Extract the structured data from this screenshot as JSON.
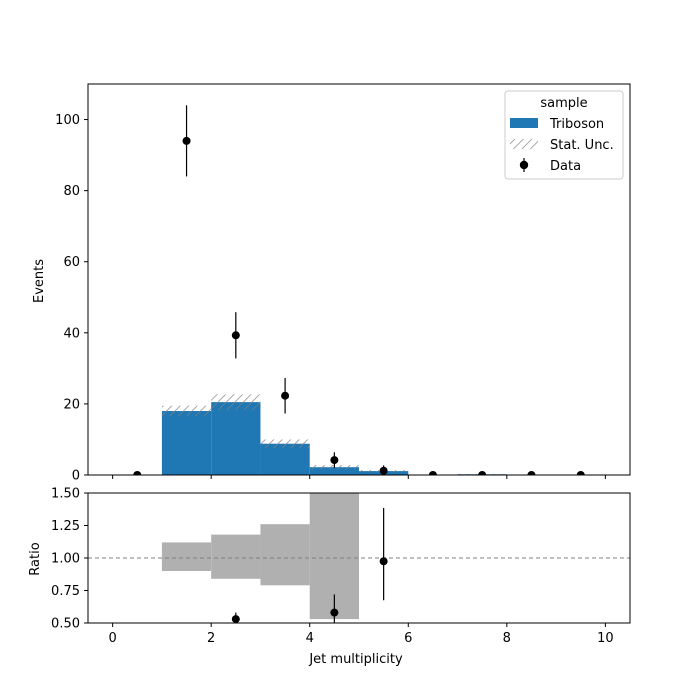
{
  "chart_data": [
    {
      "type": "bar",
      "panel": "main",
      "xlabel": "",
      "ylabel": "Events",
      "xlim": [
        -0.5,
        10.5
      ],
      "ylim": [
        0,
        110
      ],
      "xticks": [
        0,
        2,
        4,
        6,
        8,
        10
      ],
      "xtick_labels_shown": false,
      "yticks": [
        0,
        20,
        40,
        60,
        80,
        100
      ],
      "ytick_labels": [
        "0",
        "20",
        "40",
        "60",
        "80",
        "100"
      ],
      "grid": false,
      "legend": {
        "placement": "top-right",
        "title": "sample",
        "entries": [
          "Triboson",
          "Stat. Unc.",
          "Data"
        ]
      },
      "bins": [
        0,
        1,
        2,
        3,
        4,
        5,
        6,
        7,
        8,
        9,
        10
      ],
      "series": [
        {
          "name": "Triboson",
          "kind": "stacked-histogram",
          "color": "#1f77b4",
          "values": [
            0,
            18.0,
            20.5,
            8.8,
            2.2,
            1.1,
            0,
            0.2,
            0,
            0
          ],
          "stat_unc": [
            0,
            1.5,
            2.2,
            1.2,
            0.6,
            0.3,
            0,
            0.1,
            0,
            0
          ]
        },
        {
          "name": "Data",
          "kind": "points",
          "color": "#000000",
          "x": [
            0.5,
            1.5,
            2.5,
            3.5,
            4.5,
            5.5,
            6.5,
            7.5,
            8.5,
            9.5
          ],
          "y": [
            0,
            94,
            39.3,
            22.3,
            4.2,
            1.2,
            0,
            0,
            0,
            0
          ],
          "yerr": [
            0,
            10,
            6.5,
            5,
            2.2,
            1.5,
            0,
            0,
            0,
            0
          ]
        }
      ]
    },
    {
      "type": "bar",
      "panel": "ratio",
      "xlabel": "Jet multiplicity",
      "ylabel": "Ratio",
      "xlim": [
        -0.5,
        10.5
      ],
      "ylim": [
        0.5,
        1.5
      ],
      "xticks": [
        0,
        2,
        4,
        6,
        8,
        10
      ],
      "xtick_labels": [
        "0",
        "2",
        "4",
        "6",
        "8",
        "10"
      ],
      "yticks": [
        0.5,
        0.75,
        1.0,
        1.25,
        1.5
      ],
      "ytick_labels": [
        "0.50",
        "0.75",
        "1.00",
        "1.25",
        "1.50"
      ],
      "reference_line": 1.0,
      "uncertainty_band": {
        "color": "#b0b0b0",
        "bins": [
          1,
          2,
          3,
          4,
          5
        ],
        "low": [
          0.9,
          0.84,
          0.79,
          0.53
        ],
        "high": [
          1.12,
          1.18,
          1.26,
          1.5
        ]
      },
      "points": {
        "x": [
          2.5,
          4.5,
          5.5
        ],
        "y": [
          0.53,
          0.58,
          0.975
        ],
        "yerr_low": [
          0.05,
          0.1,
          0.3
        ],
        "yerr_high": [
          0.05,
          0.14,
          0.41
        ]
      }
    }
  ]
}
